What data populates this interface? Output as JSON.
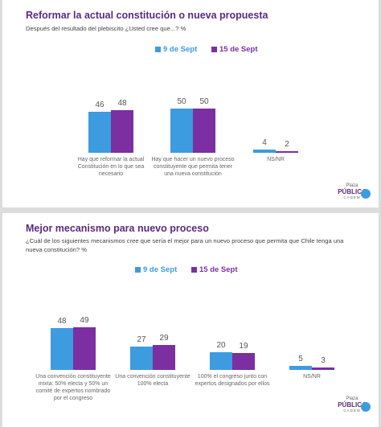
{
  "chart_data": [
    {
      "type": "bar",
      "title": "Reformar la actual constitución o nueva propuesta",
      "subtitle": "Después del resultado del plebiscito ¿Usted cree que...? %",
      "categories": [
        "Hay que reformar la actual Constitución en lo que sea necesario",
        "Hay que hacer un nuevo proceso constituyente que permita tener una nueva constitución",
        "NS/NR"
      ],
      "series": [
        {
          "name": "9 de Sept",
          "color": "#3d9be0",
          "values": [
            46,
            50,
            4
          ]
        },
        {
          "name": "15 de Sept",
          "color": "#7b2fa0",
          "values": [
            48,
            50,
            2
          ]
        }
      ]
    },
    {
      "type": "bar",
      "title": "Mejor mecanismo para nuevo proceso",
      "subtitle": "¿Cuál de los siguientes mecanismos cree que sería el mejor para un nuevo proceso que permita que Chile tenga una nueva constitución? %",
      "categories": [
        "Una convención constituyente mixta: 50% electa y 50% un comité de expertos nombrado por el congreso",
        "Una convención constituyente 100% electa",
        "100% el congreso junto con expertos designados por ellos",
        "NS/NR"
      ],
      "series": [
        {
          "name": "9 de Sept",
          "color": "#3d9be0",
          "values": [
            48,
            27,
            20,
            5
          ]
        },
        {
          "name": "15 de Sept",
          "color": "#7b2fa0",
          "values": [
            49,
            29,
            19,
            3
          ]
        }
      ]
    }
  ],
  "logo": {
    "line1": "Plaza",
    "line2": "PÚBLICA",
    "line3": "CADEM"
  }
}
